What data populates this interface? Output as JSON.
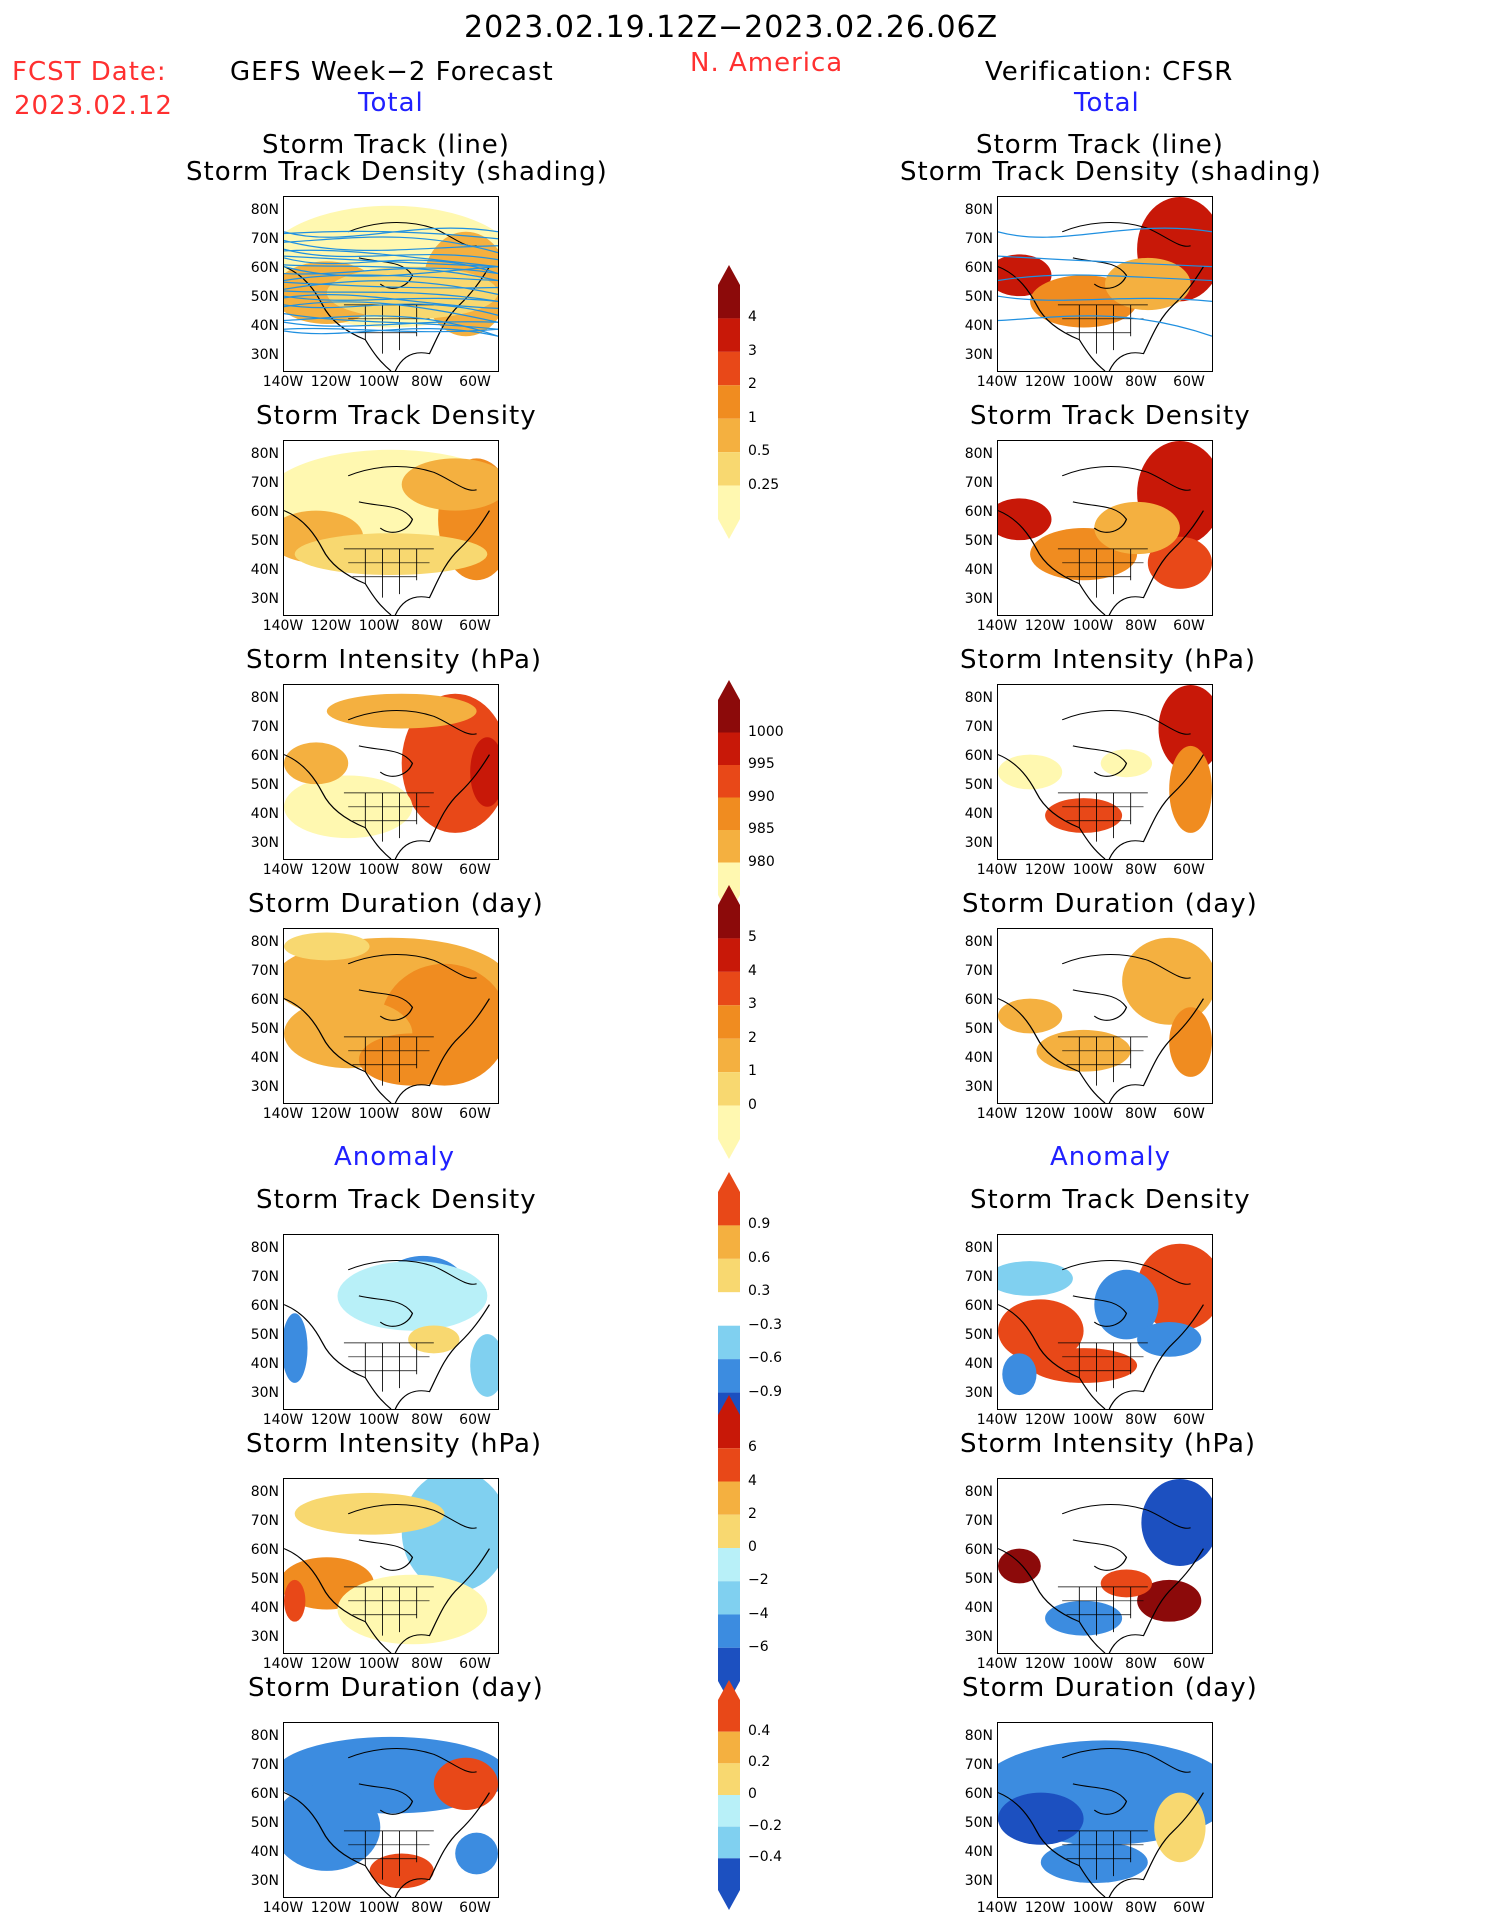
{
  "header": {
    "period": "2023.02.19.12Z−2023.02.26.06Z",
    "region": "N. America",
    "fcst_date_label": "FCST Date:",
    "fcst_date_value": "2023.02.12",
    "left_title": "GEFS Week−2 Forecast",
    "right_title": "Verification: CFSR",
    "total": "Total",
    "anomaly": "Anomaly"
  },
  "panel_titles": {
    "track_line": "Storm Track (line)",
    "track_density_shading": "Storm Track Density (shading)",
    "track_density": "Storm Track Density",
    "intensity": "Storm Intensity (hPa)",
    "duration": "Storm Duration (day)"
  },
  "axes": {
    "lat_labels": [
      "80N",
      "70N",
      "60N",
      "50N",
      "40N",
      "30N"
    ],
    "lon_labels": [
      "140W",
      "120W",
      "100W",
      "80W",
      "60W"
    ]
  },
  "colorbars": [
    {
      "id": "density-total",
      "labels": [
        "4",
        "3",
        "2",
        "1",
        "0.5",
        "0.25"
      ]
    },
    {
      "id": "intensity-total",
      "labels": [
        "1000",
        "995",
        "990",
        "985",
        "980"
      ]
    },
    {
      "id": "duration-total",
      "labels": [
        "5",
        "4",
        "3",
        "2",
        "1",
        "0"
      ]
    },
    {
      "id": "density-anom",
      "labels": [
        "0.9",
        "0.6",
        "0.3",
        "−0.3",
        "−0.6",
        "−0.9"
      ]
    },
    {
      "id": "intensity-anom",
      "labels": [
        "6",
        "4",
        "2",
        "0",
        "−2",
        "−4",
        "−6"
      ]
    },
    {
      "id": "duration-anom",
      "labels": [
        "0.4",
        "0.2",
        "0",
        "−0.2",
        "−0.4"
      ]
    }
  ],
  "colors": {
    "warm1": "#fff8b0",
    "warm2": "#f8d870",
    "warm3": "#f4b040",
    "warm4": "#f08c20",
    "warm5": "#e84818",
    "warm6": "#c81808",
    "warm7": "#8c0a0a",
    "cool1": "#b8f0f8",
    "cool2": "#80d0f0",
    "cool3": "#3c8ce0",
    "cool4": "#1c50c0",
    "track": "#2090e0"
  }
}
